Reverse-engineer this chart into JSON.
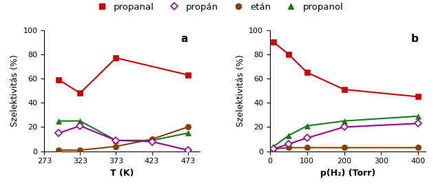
{
  "panel_a": {
    "x": [
      293,
      323,
      373,
      473
    ],
    "propanal": [
      59,
      48,
      77,
      63
    ],
    "x_propan": [
      293,
      323,
      373,
      423,
      473
    ],
    "propan": [
      15,
      21,
      9,
      8,
      1
    ],
    "x_etan": [
      293,
      323,
      373,
      423,
      473
    ],
    "etan": [
      1,
      1,
      4,
      10,
      20
    ],
    "x_propanol": [
      293,
      323,
      373,
      423,
      473
    ],
    "propanol": [
      25,
      25,
      9,
      9,
      15
    ],
    "xlabel": "T (K)",
    "xlim": [
      273,
      490
    ],
    "xticks": [
      273,
      323,
      373,
      423,
      473
    ]
  },
  "panel_b": {
    "x": [
      10,
      50,
      100,
      200,
      400
    ],
    "propanal": [
      90,
      80,
      65,
      51,
      45
    ],
    "propan": [
      2,
      6,
      11,
      20,
      23
    ],
    "etan": [
      2,
      3,
      3,
      3,
      3
    ],
    "propanol": [
      4,
      13,
      21,
      25,
      29
    ],
    "xlabel": "p(H₂) (Torr)",
    "xlim": [
      0,
      420
    ],
    "xticks": [
      0,
      100,
      200,
      300,
      400
    ]
  },
  "ylabel": "Szelektivitás (%)",
  "ylim": [
    0,
    100
  ],
  "yticks": [
    0,
    20,
    40,
    60,
    80,
    100
  ],
  "colors": {
    "propanal": "#cc0000",
    "propan": "#990099",
    "etan": "#8B4000",
    "propanol": "#1a7a1a"
  },
  "legend_labels": [
    "propanal",
    "propán",
    "etán",
    "propanol"
  ],
  "panel_labels": [
    "a",
    "b"
  ],
  "background_color": "#ffffff",
  "linewidth": 1.5,
  "markersize": 6
}
